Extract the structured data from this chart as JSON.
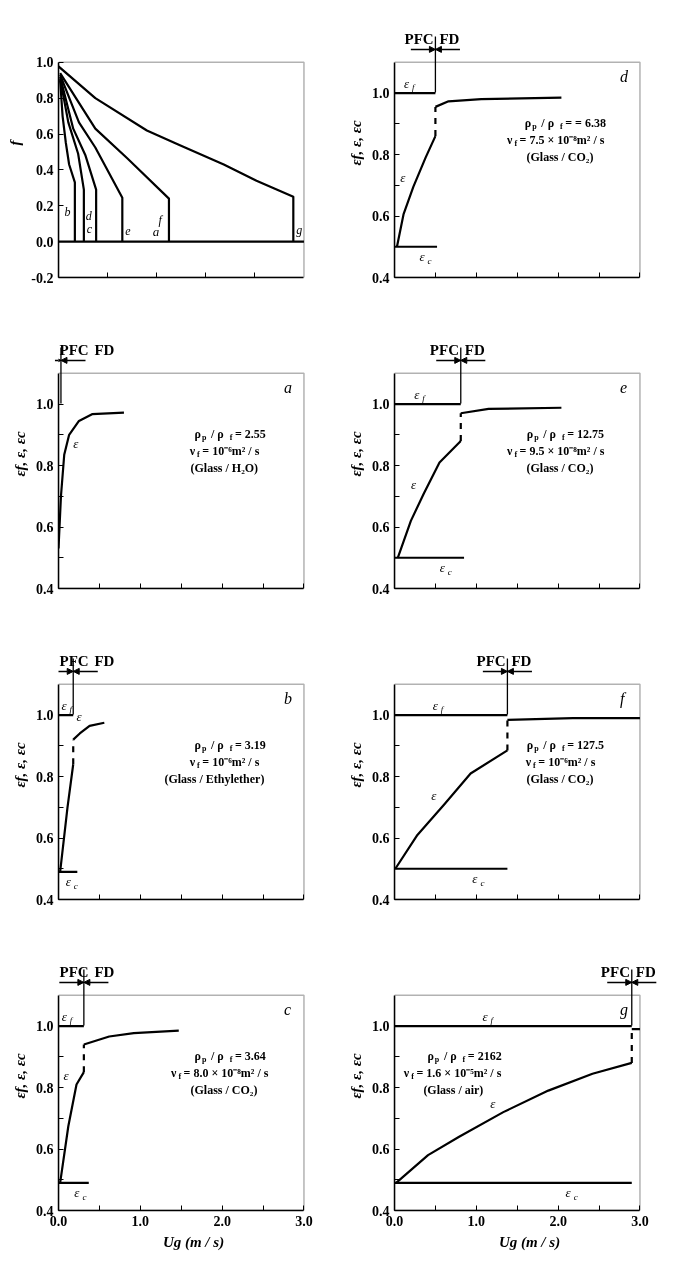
{
  "chart_data": [
    {
      "type": "line",
      "ylabel": "f",
      "xlim": [
        0,
        3
      ],
      "ylim": [
        -0.2,
        1
      ],
      "xticks": [
        0.6,
        1.2,
        1.8,
        2.4
      ],
      "yticks": [
        -0.2,
        {
          "value": 0,
          "label": "0.0"
        },
        0.2,
        0.4,
        0.6,
        0.8,
        {
          "value": 1,
          "label": "1.0"
        }
      ],
      "tick_labels": "y",
      "series": [
        {
          "name": "b",
          "color": "#000000",
          "x": [
            0.02,
            0.05,
            0.09,
            0.13,
            0.2,
            0.2
          ],
          "values": [
            0.9,
            0.7,
            0.55,
            0.43,
            0.33,
            0
          ]
        },
        {
          "name": "c",
          "color": "#000000",
          "x": [
            0.02,
            0.12,
            0.24,
            0.31,
            0.31
          ],
          "values": [
            0.91,
            0.665,
            0.49,
            0.29,
            0
          ]
        },
        {
          "name": "d",
          "color": "#000000",
          "x": [
            0.02,
            0.18,
            0.33,
            0.46,
            0.46
          ],
          "values": [
            0.92,
            0.63,
            0.48,
            0.29,
            0
          ]
        },
        {
          "name": "e",
          "color": "#000000",
          "x": [
            0.02,
            0.25,
            0.45,
            0.78,
            0.78
          ],
          "values": [
            0.93,
            0.665,
            0.525,
            0.245,
            0
          ]
        },
        {
          "name": "f",
          "color": "#000000",
          "x": [
            0.02,
            0.45,
            0.84,
            1.35,
            1.35
          ],
          "values": [
            0.94,
            0.63,
            0.465,
            0.24,
            0
          ]
        },
        {
          "name": "g",
          "color": "#000000",
          "x": [
            0,
            0.45,
            1.08,
            1.47,
            2.02,
            2.42,
            2.87,
            2.87
          ],
          "values": [
            0.977,
            0.8,
            0.62,
            0.54,
            0.43,
            0.34,
            0.25,
            0
          ]
        },
        {
          "name": "a",
          "color": "#000000",
          "x": [
            0,
            3
          ],
          "values": [
            0,
            0
          ]
        }
      ]
    },
    {
      "type": "line",
      "title": "a",
      "ylabel": "εf, ε, εc",
      "xlim": [
        0,
        3
      ],
      "ylim": [
        0.4,
        1.1
      ],
      "xticks": [
        0,
        0.5,
        1,
        1.5,
        2,
        2.5,
        3
      ],
      "yticks": [
        0.4,
        {
          "value": 0.5,
          "label": null
        },
        0.6,
        {
          "value": 0.7,
          "label": null
        },
        0.8,
        {
          "value": 0.9,
          "label": null
        },
        {
          "value": 1,
          "label": "1.0"
        }
      ],
      "tick_labels": "y",
      "annotations": [
        "ρ$_{p}$ / ρ$_{f}$= 2.55",
        "ν$_{f}$= 10⁻⁶m² / s",
        "(Glass / H₂O)"
      ],
      "ref_lines": [
        {
          "axis": "x",
          "value": 0.03,
          "label": "PFC FD"
        }
      ],
      "series": [
        {
          "name": "ε",
          "color": "#000000",
          "x": [
            0,
            0.03,
            0.07,
            0.13,
            0.25,
            0.41,
            0.8
          ],
          "values": [
            0.53,
            0.7,
            0.835,
            0.9,
            0.945,
            0.967,
            0.972
          ]
        }
      ]
    },
    {
      "type": "line",
      "title": "b",
      "ylabel": "εf, ε, εc",
      "xlim": [
        0,
        3
      ],
      "ylim": [
        0.4,
        1.1
      ],
      "xticks": [
        0,
        0.5,
        1,
        1.5,
        2,
        2.5,
        3
      ],
      "yticks": [
        0.4,
        {
          "value": 0.5,
          "label": null
        },
        0.6,
        {
          "value": 0.7,
          "label": null
        },
        0.8,
        {
          "value": 0.9,
          "label": null
        },
        {
          "value": 1,
          "label": "1.0"
        }
      ],
      "tick_labels": "y",
      "annotations": [
        "ρ$_{p}$ / ρ$_{f}$= 3.19",
        "ν$_{f}$= 10⁻⁶m² / s",
        "(Glass / Ethylether)"
      ],
      "ref_lines": [
        {
          "axis": "x",
          "value": 0.18,
          "label": "PFC FD"
        }
      ],
      "series": [
        {
          "name": "ε$_{f}$",
          "color": "#000000",
          "x": [
            0,
            0.18
          ],
          "values": [
            1,
            1
          ]
        },
        {
          "name": "ε$_{c}$",
          "color": "#000000",
          "x": [
            0,
            0.23
          ],
          "values": [
            0.49,
            0.49
          ]
        },
        {
          "color": "#000000",
          "x": [
            0.02,
            0.11,
            0.18
          ],
          "values": [
            0.49,
            0.7,
            0.84
          ]
        },
        {
          "color": "#000000",
          "line_style": "dashed",
          "x": [
            0.18,
            0.18
          ],
          "values": [
            0.84,
            0.92
          ]
        },
        {
          "name": "ε",
          "color": "#000000",
          "x": [
            0.18,
            0.26,
            0.38,
            0.56
          ],
          "values": [
            0.92,
            0.94,
            0.965,
            0.975
          ]
        }
      ]
    },
    {
      "type": "line",
      "title": "c",
      "xlabel": "Ug (m / s)",
      "ylabel": "εf, ε, εc",
      "xlim": [
        0,
        3
      ],
      "ylim": [
        0.4,
        1.1
      ],
      "xticks": [
        {
          "value": 0,
          "label": "0.0"
        },
        {
          "value": 0.5,
          "label": null
        },
        {
          "value": 1,
          "label": "1.0"
        },
        {
          "value": 1.5,
          "label": null
        },
        {
          "value": 2,
          "label": "2.0"
        },
        {
          "value": 2.5,
          "label": null
        },
        {
          "value": 3,
          "label": "3.0"
        }
      ],
      "yticks": [
        0.4,
        {
          "value": 0.5,
          "label": null
        },
        0.6,
        {
          "value": 0.7,
          "label": null
        },
        0.8,
        {
          "value": 0.9,
          "label": null
        },
        {
          "value": 1,
          "label": "1.0"
        }
      ],
      "annotations": [
        "ρ$_{p}$ / ρ$_{f}$= 3.64",
        "ν$_{f}$= 8.0 × 10⁻⁸m² / s",
        "(Glass / CO₂)"
      ],
      "ref_lines": [
        {
          "axis": "x",
          "value": 0.31,
          "label": "PFC FD"
        }
      ],
      "series": [
        {
          "name": "ε$_{f}$",
          "color": "#000000",
          "x": [
            0,
            0.31
          ],
          "values": [
            1,
            1
          ]
        },
        {
          "name": "ε$_{c}$",
          "color": "#000000",
          "x": [
            0,
            0.37
          ],
          "values": [
            0.49,
            0.49
          ]
        },
        {
          "name": "ε",
          "color": "#000000",
          "x": [
            0.02,
            0.12,
            0.22,
            0.31
          ],
          "values": [
            0.49,
            0.674,
            0.81,
            0.85
          ]
        },
        {
          "color": "#000000",
          "line_style": "dashed",
          "x": [
            0.31,
            0.31
          ],
          "values": [
            0.85,
            0.94
          ]
        },
        {
          "color": "#000000",
          "x": [
            0.31,
            0.62,
            0.92,
            1.47
          ],
          "values": [
            0.94,
            0.966,
            0.977,
            0.985
          ]
        }
      ]
    },
    {
      "type": "line",
      "title": "d",
      "ylabel": "εf, ε, εc",
      "xlim": [
        0,
        3
      ],
      "ylim": [
        0.4,
        1.1
      ],
      "xticks": [
        0,
        0.5,
        1,
        1.5,
        2,
        2.5,
        3
      ],
      "yticks": [
        0.4,
        {
          "value": 0.5,
          "label": null
        },
        0.6,
        {
          "value": 0.7,
          "label": null
        },
        0.8,
        {
          "value": 0.9,
          "label": null
        },
        {
          "value": 1,
          "label": "1.0"
        }
      ],
      "tick_labels": "y",
      "annotations": [
        "ρ$_{p}$ / ρ$_{f}$= = 6.38",
        "ν$_{f}$= 7.5 × 10⁻⁸m² / s",
        "(Glass / CO₂)"
      ],
      "ref_lines": [
        {
          "axis": "x",
          "value": 0.5,
          "label": "PFC FD"
        }
      ],
      "series": [
        {
          "name": "ε$_{f}$",
          "color": "#000000",
          "x": [
            0,
            0.5
          ],
          "values": [
            1,
            1
          ]
        },
        {
          "name": "ε$_{c}$",
          "color": "#000000",
          "x": [
            0,
            0.52
          ],
          "values": [
            0.5,
            0.5
          ]
        },
        {
          "name": "ε",
          "color": "#000000",
          "x": [
            0.03,
            0.11,
            0.23,
            0.38,
            0.5
          ],
          "values": [
            0.5,
            0.605,
            0.695,
            0.79,
            0.86
          ]
        },
        {
          "color": "#000000",
          "line_style": "dashed",
          "x": [
            0.5,
            0.5
          ],
          "values": [
            0.86,
            0.955
          ]
        },
        {
          "color": "#000000",
          "x": [
            0.5,
            0.66,
            1.06,
            2.04
          ],
          "values": [
            0.955,
            0.973,
            0.98,
            0.985
          ]
        }
      ]
    },
    {
      "type": "line",
      "title": "e",
      "ylabel": "εf, ε, εc",
      "xlim": [
        0,
        3
      ],
      "ylim": [
        0.4,
        1.1
      ],
      "xticks": [
        0,
        0.5,
        1,
        1.5,
        2,
        2.5,
        3
      ],
      "yticks": [
        0.4,
        {
          "value": 0.5,
          "label": null
        },
        0.6,
        {
          "value": 0.7,
          "label": null
        },
        0.8,
        {
          "value": 0.9,
          "label": null
        },
        {
          "value": 1,
          "label": "1.0"
        }
      ],
      "tick_labels": "y",
      "annotations": [
        "ρ$_{p}$ / ρ$_{f}$= 12.75",
        "ν$_{f}$= 9.5 × 10⁻⁸m² / s",
        "(Glass / CO₂)"
      ],
      "ref_lines": [
        {
          "axis": "x",
          "value": 0.81,
          "label": "PFC FD"
        }
      ],
      "series": [
        {
          "name": "ε$_{f}$",
          "color": "#000000",
          "x": [
            0,
            0.81
          ],
          "values": [
            1,
            1
          ]
        },
        {
          "name": "ε$_{c}$",
          "color": "#000000",
          "x": [
            0,
            0.85
          ],
          "values": [
            0.5,
            0.5
          ]
        },
        {
          "name": "ε",
          "color": "#000000",
          "x": [
            0.04,
            0.2,
            0.36,
            0.55,
            0.81
          ],
          "values": [
            0.5,
            0.62,
            0.71,
            0.81,
            0.88
          ]
        },
        {
          "color": "#000000",
          "line_style": "dashed",
          "x": [
            0.81,
            0.81
          ],
          "values": [
            0.88,
            0.97
          ]
        },
        {
          "color": "#000000",
          "x": [
            0.81,
            1.15,
            2.04
          ],
          "values": [
            0.97,
            0.984,
            0.988
          ]
        }
      ]
    },
    {
      "type": "line",
      "title": "f",
      "ylabel": "εf, ε, εc",
      "xlim": [
        0,
        3
      ],
      "ylim": [
        0.4,
        1.1
      ],
      "xticks": [
        0,
        0.5,
        1,
        1.5,
        2,
        2.5,
        3
      ],
      "yticks": [
        0.4,
        {
          "value": 0.5,
          "label": null
        },
        0.6,
        {
          "value": 0.7,
          "label": null
        },
        0.8,
        {
          "value": 0.9,
          "label": null
        },
        {
          "value": 1,
          "label": "1.0"
        }
      ],
      "tick_labels": "y",
      "annotations": [
        "ρ$_{p}$ / ρ$_{f}$= 127.5",
        "ν$_{f}$= 10⁻⁶m² / s",
        "(Glass / CO₂)"
      ],
      "ref_lines": [
        {
          "axis": "x",
          "value": 1.38,
          "label": "PFC FD"
        }
      ],
      "series": [
        {
          "name": "ε$_{f}$",
          "color": "#000000",
          "x": [
            0,
            1.38
          ],
          "values": [
            1,
            1
          ]
        },
        {
          "name": "ε$_{c}$",
          "color": "#000000",
          "x": [
            0,
            1.38
          ],
          "values": [
            0.5,
            0.5
          ]
        },
        {
          "name": "ε",
          "color": "#000000",
          "x": [
            0.01,
            0.28,
            0.61,
            0.93,
            1.38
          ],
          "values": [
            0.5,
            0.61,
            0.71,
            0.81,
            0.885
          ]
        },
        {
          "color": "#000000",
          "line_style": "dashed",
          "x": [
            1.38,
            1.38
          ],
          "values": [
            0.885,
            0.984
          ]
        },
        {
          "color": "#000000",
          "x": [
            1.38,
            2.18,
            3
          ],
          "values": [
            0.984,
            0.99,
            0.99
          ]
        }
      ]
    },
    {
      "type": "line",
      "title": "g",
      "xlabel": "Ug (m / s)",
      "ylabel": "εf, ε, εc",
      "xlim": [
        0,
        3
      ],
      "ylim": [
        0.4,
        1.1
      ],
      "xticks": [
        {
          "value": 0,
          "label": "0.0"
        },
        {
          "value": 0.5,
          "label": null
        },
        {
          "value": 1,
          "label": "1.0"
        },
        {
          "value": 1.5,
          "label": null
        },
        {
          "value": 2,
          "label": "2.0"
        },
        {
          "value": 2.5,
          "label": null
        },
        {
          "value": 3,
          "label": "3.0"
        }
      ],
      "yticks": [
        0.4,
        {
          "value": 0.5,
          "label": null
        },
        0.6,
        {
          "value": 0.7,
          "label": null
        },
        0.8,
        {
          "value": 0.9,
          "label": null
        },
        {
          "value": 1,
          "label": "1.0"
        }
      ],
      "annotations": [
        "ρ$_{p}$ / ρ$_{f}$= 2162",
        "ν$_{f}$= 1.6 × 10⁻⁵m² / s",
        "(Glass / air)"
      ],
      "ref_lines": [
        {
          "axis": "x",
          "value": 2.9,
          "label": "PFC FD"
        }
      ],
      "series": [
        {
          "name": "ε$_{f}$",
          "color": "#000000",
          "x": [
            0,
            2.9
          ],
          "values": [
            1,
            1
          ]
        },
        {
          "name": "ε$_{c}$",
          "color": "#000000",
          "x": [
            0,
            2.9
          ],
          "values": [
            0.49,
            0.49
          ]
        },
        {
          "name": "ε",
          "color": "#000000",
          "x": [
            0.02,
            0.41,
            0.79,
            1.33,
            1.88,
            2.42,
            2.9
          ],
          "values": [
            0.49,
            0.58,
            0.64,
            0.72,
            0.79,
            0.845,
            0.88
          ]
        },
        {
          "color": "#000000",
          "line_style": "dashed",
          "x": [
            2.9,
            2.9
          ],
          "values": [
            0.88,
            0.99
          ]
        },
        {
          "color": "#000000",
          "x": [
            2.9,
            3
          ],
          "values": [
            0.99,
            0.99
          ]
        }
      ]
    }
  ]
}
